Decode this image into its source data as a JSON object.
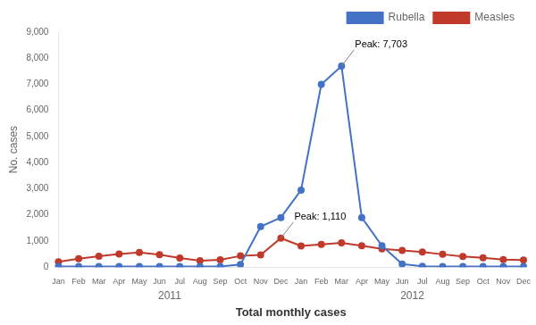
{
  "chart_data": {
    "type": "line",
    "categories": [
      "Jan",
      "Feb",
      "Mar",
      "Apr",
      "May",
      "Jun",
      "Jul",
      "Aug",
      "Sep",
      "Oct",
      "Nov",
      "Dec",
      "Jan",
      "Feb",
      "Mar",
      "Apr",
      "May",
      "Jun",
      "Jul",
      "Aug",
      "Sep",
      "Oct",
      "Nov",
      "Dec"
    ],
    "category_groups": [
      "2011",
      "2012"
    ],
    "series": [
      {
        "name": "Rubella",
        "color": "#4472c4",
        "marker": "circle",
        "line_style": "solid",
        "values": [
          20,
          20,
          20,
          20,
          20,
          20,
          20,
          20,
          20,
          100,
          1550,
          1900,
          2950,
          7000,
          7703,
          1900,
          820,
          120,
          30,
          20,
          20,
          20,
          20,
          20
        ]
      },
      {
        "name": "Measles",
        "color": "#c0392b",
        "marker": "circle",
        "line_style": "solid",
        "values": [
          200,
          320,
          420,
          500,
          560,
          480,
          350,
          250,
          280,
          430,
          470,
          1110,
          810,
          870,
          930,
          820,
          700,
          640,
          580,
          490,
          410,
          360,
          290,
          270
        ]
      }
    ],
    "annotations": [
      {
        "text": "Peak: 7,703",
        "x": 14,
        "y": 7703
      },
      {
        "text": "Peak: 1,110",
        "x": 11,
        "y": 1110
      }
    ],
    "ylabel": "No. cases",
    "xlabel": "Total monthly cases",
    "ylim": [
      0,
      9000
    ],
    "yticks": [
      0,
      {
        "value": 1000,
        "label": "1,000"
      },
      {
        "value": 2000,
        "label": "2,000"
      },
      {
        "value": 3000,
        "label": "3,000"
      },
      {
        "value": 4000,
        "label": "4,000"
      },
      {
        "value": 5000,
        "label": "5,000"
      },
      {
        "value": 6000,
        "label": "6,000"
      },
      {
        "value": 7000,
        "label": "7,000"
      },
      {
        "value": 8000,
        "label": "8,000"
      },
      {
        "value": 9000,
        "label": "9,000"
      }
    ],
    "grid": false,
    "legend": "upper right"
  }
}
